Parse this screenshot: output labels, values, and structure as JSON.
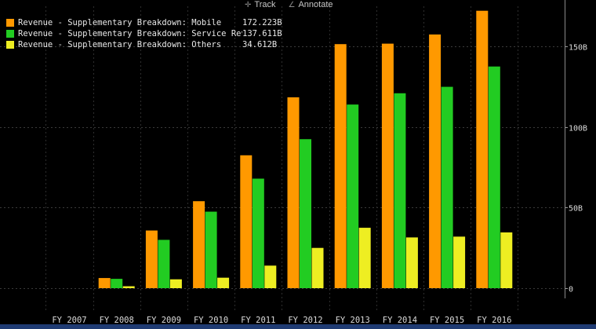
{
  "toolbar": {
    "track_label": "Track",
    "annotate_label": "Annotate"
  },
  "legend": [
    {
      "name": "Revenue - Supplementary Breakdown: Mobile",
      "value_label": "172.223B",
      "color": "#ff9900"
    },
    {
      "name": "Revenue - Supplementary Breakdown: Service Revenue",
      "value_label": "137.611B",
      "color": "#22cc22"
    },
    {
      "name": "Revenue - Supplementary Breakdown: Others",
      "value_label": "34.612B",
      "color": "#eeee22"
    }
  ],
  "chart_data": {
    "type": "bar",
    "categories": [
      "FY 2007",
      "FY 2008",
      "FY 2009",
      "FY 2010",
      "FY 2011",
      "FY 2012",
      "FY 2013",
      "FY 2014",
      "FY 2015",
      "FY 2016"
    ],
    "series": [
      {
        "name": "Revenue - Supplementary Breakdown: Mobile",
        "color": "#ff9900",
        "values": [
          null,
          6.3,
          35.8,
          54.0,
          82.5,
          118.5,
          151.5,
          151.8,
          157.5,
          172.223
        ]
      },
      {
        "name": "Revenue - Supplementary Breakdown: Service Revenue",
        "color": "#22cc22",
        "values": [
          null,
          5.8,
          30.0,
          47.5,
          68.0,
          92.5,
          114.0,
          121.0,
          125.0,
          137.611
        ]
      },
      {
        "name": "Revenue - Supplementary Breakdown: Others",
        "color": "#eeee22",
        "values": [
          null,
          1.2,
          5.5,
          6.5,
          14.0,
          25.0,
          37.5,
          31.5,
          32.0,
          34.612
        ]
      }
    ],
    "ylim": [
      0,
      175
    ],
    "yticks": [
      0,
      50,
      100,
      150
    ],
    "ytick_labels": [
      "0",
      "50B",
      "100B",
      "150B"
    ],
    "grid": true,
    "y_axis_side": "right",
    "legend_position": "top-left"
  }
}
